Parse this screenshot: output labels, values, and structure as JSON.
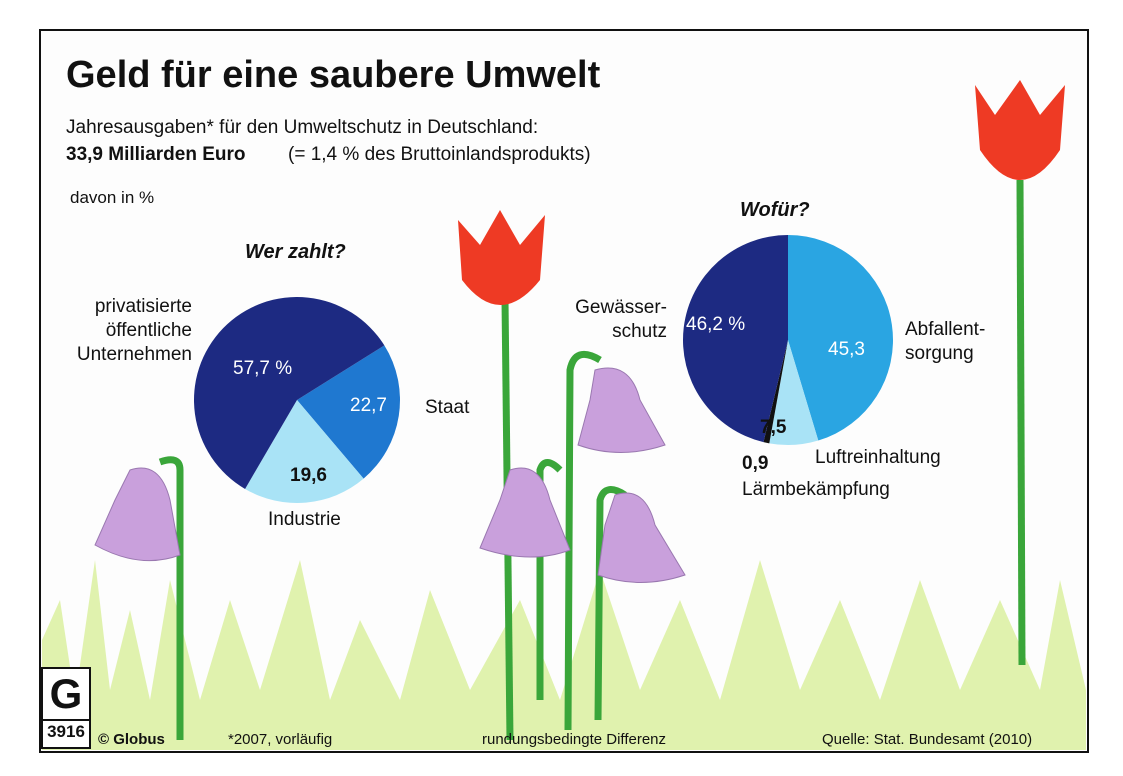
{
  "title": "Geld für eine saubere Umwelt",
  "subtitle": "Jahresausgaben* für den Umweltschutz in Deutschland:",
  "total": "33,9 Milliarden Euro",
  "total_note": "(= 1,4 % des Bruttoinlandsprodukts)",
  "unit_note": "davon in %",
  "chart_data": [
    {
      "type": "pie",
      "title": "Wer zahlt?",
      "categories": [
        "Staat",
        "Industrie",
        "privatisierte\nöffentliche\nUnternehmen"
      ],
      "values": [
        22.7,
        19.6,
        57.7
      ],
      "value_labels": [
        "22,7",
        "19,6",
        "57,7 %"
      ],
      "colors": [
        "#1f78d0",
        "#a9e3f6",
        "#1d2a82"
      ]
    },
    {
      "type": "pie",
      "title": "Wofür?",
      "categories": [
        "Abfallent-\nsorgung",
        "Luftreinhaltung",
        "Lärmbekämpfung",
        "Gewässer-\nschutz"
      ],
      "values": [
        45.3,
        7.5,
        0.9,
        46.2
      ],
      "value_labels": [
        "45,3",
        "7,5",
        "0,9",
        "46,2 %"
      ],
      "colors": [
        "#2aa5e2",
        "#a9e3f6",
        "#111111",
        "#1d2a82"
      ]
    }
  ],
  "footer": {
    "logo_number": "3916",
    "credit": "© Globus",
    "footnote": "*2007, vorläufig",
    "note": "rundungsbedingte Differenz",
    "source": "Quelle: Stat. Bundesamt (2010)"
  }
}
